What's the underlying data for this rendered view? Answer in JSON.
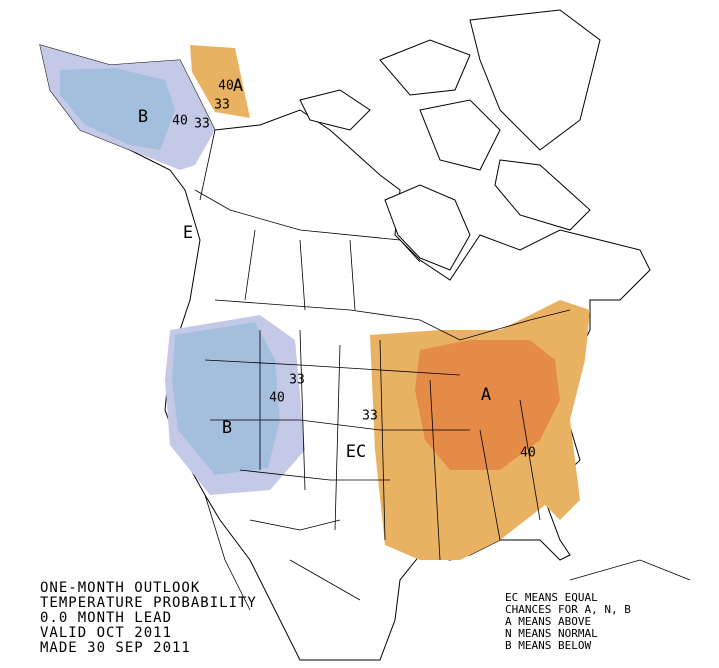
{
  "map_labels": [
    "B",
    "40",
    "33",
    "A",
    "40",
    "33",
    "E",
    "33",
    "40",
    "B",
    "A",
    "33",
    "EC",
    "40"
  ],
  "caption_lines": [
    "ONE-MONTH OUTLOOK",
    "TEMPERATURE PROBABILITY",
    "0.0 MONTH LEAD",
    "VALID OCT 2011",
    "MADE 30 SEP 2011"
  ],
  "legend_lines": [
    "EC MEANS EQUAL",
    "CHANCES FOR A, N, B",
    "A MEANS ABOVE",
    "N MEANS NORMAL",
    "B MEANS BELOW"
  ]
}
